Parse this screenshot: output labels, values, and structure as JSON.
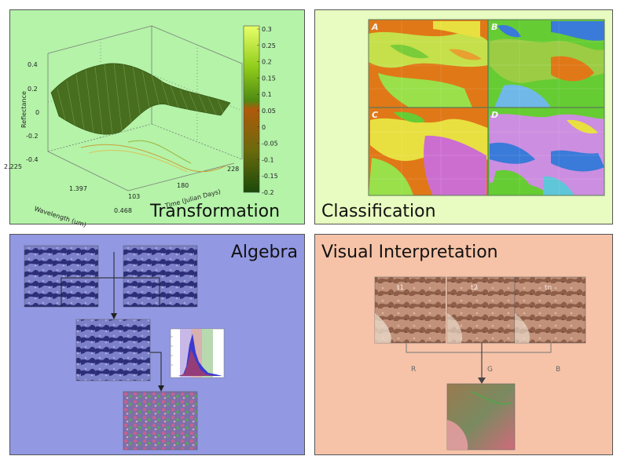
{
  "panels": {
    "transformation": {
      "label": "Transformation",
      "color": "#b4f3a8",
      "plot": {
        "z_label": "Reflectance",
        "x_label": "Wavelength (um)",
        "y_label": "Time (Julian Days)",
        "z_ticks": [
          "0.4",
          "0.2",
          "0",
          "-0.2",
          "-0.4"
        ],
        "x_ticks": [
          "2.225",
          "1.397",
          "0.468"
        ],
        "y_ticks": [
          "103",
          "180",
          "228"
        ],
        "colorbar_ticks": [
          "0.3",
          "0.25",
          "0.2",
          "0.15",
          "0.1",
          "0.05",
          "0",
          "-0.05",
          "-0.1",
          "-0.15",
          "-0.2"
        ]
      }
    },
    "classification": {
      "label": "Classification",
      "color": "#e8fbc0",
      "quadrants": [
        "A",
        "B",
        "C",
        "D"
      ]
    },
    "algebra": {
      "label": "Algebra",
      "color": "#9298e2"
    },
    "visual_interpretation": {
      "label": "Visual Interpretation",
      "color": "#f6c3a8",
      "images": [
        "t1",
        "t2",
        "tn"
      ],
      "channels": [
        "R",
        "G",
        "B"
      ]
    }
  }
}
